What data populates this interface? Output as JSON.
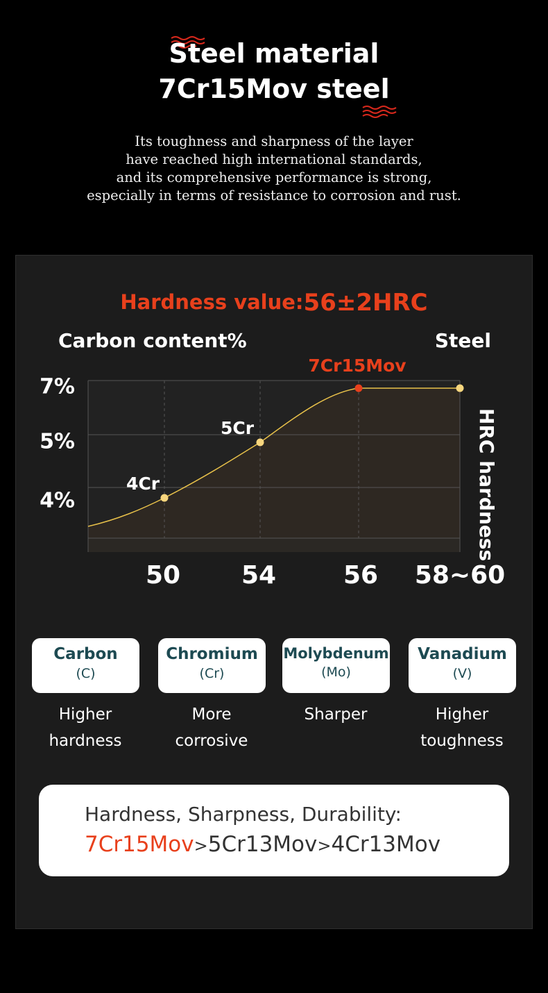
{
  "header": {
    "title_line1": "Steel material",
    "title_line2": "7Cr15Mov steel",
    "description": [
      "Its toughness and sharpness of the layer",
      "have reached high international standards,",
      "and its comprehensive performance is strong,",
      "especially in terms of resistance to corrosion and rust."
    ]
  },
  "chart": {
    "hardness_label": "Hardness value:",
    "hardness_value": "56±2HRC",
    "y_title": "Carbon content%",
    "right_title": "Steel",
    "y_labels": [
      "7%",
      "5%",
      "4%"
    ],
    "x_labels": [
      "50",
      "54",
      "56",
      "58~60"
    ],
    "x_title": "HRC hardness",
    "points": [
      "4Cr",
      "5Cr",
      "7Cr15Mov"
    ]
  },
  "elements": [
    {
      "name": "Carbon",
      "symbol": "(C)",
      "benefit": [
        "Higher",
        "hardness"
      ]
    },
    {
      "name": "Chromium",
      "symbol": "(Cr)",
      "benefit": [
        "More",
        "corrosive"
      ]
    },
    {
      "name": "Molybdenum",
      "symbol": "(Mo)",
      "benefit": [
        "Sharper"
      ]
    },
    {
      "name": "Vanadium",
      "symbol": "(V)",
      "benefit": [
        "Higher",
        "toughness"
      ]
    }
  ],
  "summary": {
    "heading": "Hardness, Sharpness, Durability:",
    "ranking": [
      "7Cr15Mov",
      "5Cr13Mov",
      "4Cr13Mov"
    ],
    "separator": ">"
  }
}
